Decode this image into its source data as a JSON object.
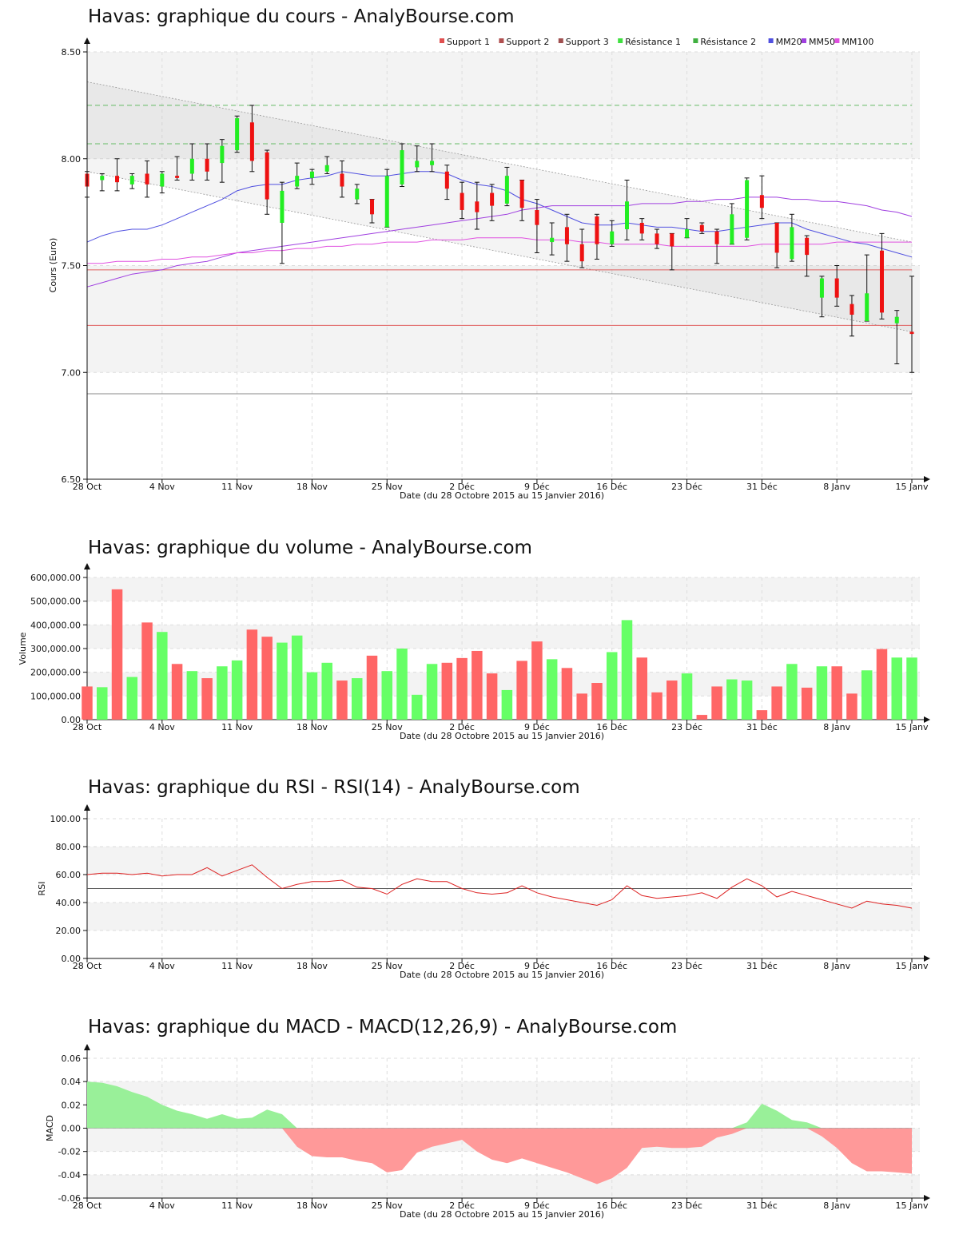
{
  "chart_data": [
    {
      "type": "candlestick",
      "title": "Havas: graphique du cours - AnalyBourse.com",
      "xlabel": "Date (du 28 Octobre 2015 au 15 Janvier 2016)",
      "ylabel": "Cours (Euro)",
      "ylim": [
        6.5,
        8.5
      ],
      "yticks": [
        "6.50",
        "7.00",
        "7.50",
        "8.00",
        "8.50"
      ],
      "date_ticks": [
        "28 Oct",
        "4 Nov",
        "11 Nov",
        "18 Nov",
        "25 Nov",
        "2 Déc",
        "9 Déc",
        "16 Déc",
        "23 Déc",
        "31 Déc",
        "8 Janv",
        "15 Janv"
      ],
      "legend_position": "top-right",
      "legend": [
        {
          "label": "Support 1",
          "color": "#e05050"
        },
        {
          "label": "Support 2",
          "color": "#b05050"
        },
        {
          "label": "Support 3",
          "color": "#a05050"
        },
        {
          "label": "Résistance 1",
          "color": "#40e040"
        },
        {
          "label": "Résistance 2",
          "color": "#40b040"
        },
        {
          "label": "MM20",
          "color": "#5050e0"
        },
        {
          "label": "MM50",
          "color": "#a040e0"
        },
        {
          "label": "MM100",
          "color": "#e050e0"
        }
      ],
      "levels": {
        "support1": 7.48,
        "support2": 7.22,
        "support3": 6.9,
        "resistance1": 8.07,
        "resistance2": 8.25
      },
      "channel": {
        "upper": [
          8.36,
          7.61
        ],
        "lower": [
          7.94,
          7.19
        ]
      },
      "candles": [
        {
          "o": 7.93,
          "h": 7.94,
          "l": 7.82,
          "c": 7.87
        },
        {
          "o": 7.9,
          "h": 7.93,
          "l": 7.85,
          "c": 7.92
        },
        {
          "o": 7.92,
          "h": 8.0,
          "l": 7.85,
          "c": 7.89
        },
        {
          "o": 7.88,
          "h": 7.93,
          "l": 7.86,
          "c": 7.92
        },
        {
          "o": 7.93,
          "h": 7.99,
          "l": 7.82,
          "c": 7.88
        },
        {
          "o": 7.87,
          "h": 7.94,
          "l": 7.84,
          "c": 7.93
        },
        {
          "o": 7.92,
          "h": 8.01,
          "l": 7.9,
          "c": 7.91
        },
        {
          "o": 7.93,
          "h": 8.07,
          "l": 7.9,
          "c": 8.0
        },
        {
          "o": 8.0,
          "h": 8.07,
          "l": 7.9,
          "c": 7.94
        },
        {
          "o": 7.98,
          "h": 8.09,
          "l": 7.89,
          "c": 8.06
        },
        {
          "o": 8.04,
          "h": 8.2,
          "l": 8.03,
          "c": 8.19
        },
        {
          "o": 8.17,
          "h": 8.25,
          "l": 7.94,
          "c": 7.99
        },
        {
          "o": 8.03,
          "h": 8.04,
          "l": 7.74,
          "c": 7.81
        },
        {
          "o": 7.7,
          "h": 7.89,
          "l": 7.51,
          "c": 7.85
        },
        {
          "o": 7.87,
          "h": 7.98,
          "l": 7.86,
          "c": 7.92
        },
        {
          "o": 7.91,
          "h": 7.95,
          "l": 7.88,
          "c": 7.94
        },
        {
          "o": 7.94,
          "h": 8.01,
          "l": 7.93,
          "c": 7.97
        },
        {
          "o": 7.93,
          "h": 7.99,
          "l": 7.82,
          "c": 7.87
        },
        {
          "o": 7.81,
          "h": 7.88,
          "l": 7.79,
          "c": 7.86
        },
        {
          "o": 7.81,
          "h": 7.81,
          "l": 7.7,
          "c": 7.74
        },
        {
          "o": 7.68,
          "h": 7.95,
          "l": 7.68,
          "c": 7.92
        },
        {
          "o": 7.88,
          "h": 8.07,
          "l": 7.87,
          "c": 8.04
        },
        {
          "o": 7.96,
          "h": 8.06,
          "l": 7.94,
          "c": 7.99
        },
        {
          "o": 7.97,
          "h": 8.07,
          "l": 7.94,
          "c": 7.99
        },
        {
          "o": 7.94,
          "h": 7.97,
          "l": 7.81,
          "c": 7.86
        },
        {
          "o": 7.84,
          "h": 7.89,
          "l": 7.72,
          "c": 7.76
        },
        {
          "o": 7.8,
          "h": 7.89,
          "l": 7.67,
          "c": 7.75
        },
        {
          "o": 7.84,
          "h": 7.88,
          "l": 7.71,
          "c": 7.78
        },
        {
          "o": 7.79,
          "h": 7.96,
          "l": 7.78,
          "c": 7.92
        },
        {
          "o": 7.9,
          "h": 7.9,
          "l": 7.71,
          "c": 7.77
        },
        {
          "o": 7.76,
          "h": 7.81,
          "l": 7.56,
          "c": 7.69
        },
        {
          "o": 7.61,
          "h": 7.7,
          "l": 7.55,
          "c": 7.63
        },
        {
          "o": 7.68,
          "h": 7.74,
          "l": 7.52,
          "c": 7.6
        },
        {
          "o": 7.6,
          "h": 7.67,
          "l": 7.49,
          "c": 7.52
        },
        {
          "o": 7.73,
          "h": 7.74,
          "l": 7.53,
          "c": 7.6
        },
        {
          "o": 7.6,
          "h": 7.71,
          "l": 7.59,
          "c": 7.66
        },
        {
          "o": 7.67,
          "h": 7.9,
          "l": 7.62,
          "c": 7.8
        },
        {
          "o": 7.7,
          "h": 7.72,
          "l": 7.62,
          "c": 7.65
        },
        {
          "o": 7.65,
          "h": 7.67,
          "l": 7.58,
          "c": 7.6
        },
        {
          "o": 7.65,
          "h": 7.65,
          "l": 7.48,
          "c": 7.59
        },
        {
          "o": 7.63,
          "h": 7.72,
          "l": 7.63,
          "c": 7.67
        },
        {
          "o": 7.69,
          "h": 7.7,
          "l": 7.65,
          "c": 7.66
        },
        {
          "o": 7.66,
          "h": 7.67,
          "l": 7.51,
          "c": 7.6
        },
        {
          "o": 7.6,
          "h": 7.79,
          "l": 7.6,
          "c": 7.74
        },
        {
          "o": 7.63,
          "h": 7.91,
          "l": 7.62,
          "c": 7.9
        },
        {
          "o": 7.83,
          "h": 7.92,
          "l": 7.72,
          "c": 7.77
        },
        {
          "o": 7.7,
          "h": 7.7,
          "l": 7.49,
          "c": 7.56
        },
        {
          "o": 7.53,
          "h": 7.74,
          "l": 7.52,
          "c": 7.68
        },
        {
          "o": 7.63,
          "h": 7.64,
          "l": 7.45,
          "c": 7.55
        },
        {
          "o": 7.35,
          "h": 7.45,
          "l": 7.26,
          "c": 7.44
        },
        {
          "o": 7.44,
          "h": 7.5,
          "l": 7.31,
          "c": 7.35
        },
        {
          "o": 7.32,
          "h": 7.36,
          "l": 7.17,
          "c": 7.27
        },
        {
          "o": 7.24,
          "h": 7.55,
          "l": 7.24,
          "c": 7.37
        },
        {
          "o": 7.57,
          "h": 7.65,
          "l": 7.25,
          "c": 7.28
        },
        {
          "o": 7.23,
          "h": 7.29,
          "l": 7.04,
          "c": 7.26
        },
        {
          "o": 7.19,
          "h": 7.45,
          "l": 7.0,
          "c": 7.18
        }
      ],
      "mm20": [
        7.61,
        7.64,
        7.66,
        7.67,
        7.67,
        7.69,
        7.72,
        7.75,
        7.78,
        7.81,
        7.85,
        7.87,
        7.88,
        7.88,
        7.9,
        7.91,
        7.92,
        7.94,
        7.93,
        7.92,
        7.92,
        7.93,
        7.94,
        7.94,
        7.93,
        7.9,
        7.88,
        7.87,
        7.85,
        7.81,
        7.79,
        7.76,
        7.73,
        7.7,
        7.69,
        7.69,
        7.7,
        7.69,
        7.68,
        7.68,
        7.67,
        7.66,
        7.66,
        7.67,
        7.68,
        7.69,
        7.7,
        7.7,
        7.67,
        7.65,
        7.63,
        7.61,
        7.6,
        7.58,
        7.56,
        7.54
      ],
      "mm50": [
        7.4,
        7.42,
        7.44,
        7.46,
        7.47,
        7.48,
        7.5,
        7.51,
        7.52,
        7.54,
        7.56,
        7.57,
        7.58,
        7.59,
        7.6,
        7.61,
        7.62,
        7.63,
        7.64,
        7.65,
        7.66,
        7.67,
        7.68,
        7.69,
        7.7,
        7.71,
        7.72,
        7.73,
        7.74,
        7.76,
        7.77,
        7.78,
        7.78,
        7.78,
        7.78,
        7.78,
        7.78,
        7.79,
        7.79,
        7.79,
        7.8,
        7.8,
        7.81,
        7.81,
        7.82,
        7.82,
        7.82,
        7.81,
        7.81,
        7.8,
        7.8,
        7.79,
        7.78,
        7.76,
        7.75,
        7.73
      ],
      "mm100": [
        7.51,
        7.51,
        7.52,
        7.52,
        7.52,
        7.53,
        7.53,
        7.54,
        7.54,
        7.55,
        7.56,
        7.56,
        7.57,
        7.57,
        7.58,
        7.58,
        7.59,
        7.59,
        7.6,
        7.6,
        7.61,
        7.61,
        7.61,
        7.62,
        7.62,
        7.62,
        7.63,
        7.63,
        7.63,
        7.63,
        7.62,
        7.62,
        7.62,
        7.61,
        7.61,
        7.6,
        7.6,
        7.6,
        7.6,
        7.59,
        7.59,
        7.59,
        7.59,
        7.59,
        7.59,
        7.6,
        7.6,
        7.6,
        7.6,
        7.6,
        7.61,
        7.61,
        7.61,
        7.61,
        7.61,
        7.61
      ]
    },
    {
      "type": "bar",
      "title": "Havas: graphique du volume - AnalyBourse.com",
      "xlabel": "Date (du 28 Octobre 2015 au 15 Janvier 2016)",
      "ylabel": "Volume",
      "ylim": [
        0,
        600000
      ],
      "yticks": [
        "0.00",
        "100,000.00",
        "200,000.00",
        "300,000.00",
        "400,000.00",
        "500,000.00",
        "600,000.00"
      ],
      "date_ticks": [
        "28 Oct",
        "4 Nov",
        "11 Nov",
        "18 Nov",
        "25 Nov",
        "2 Déc",
        "9 Déc",
        "16 Déc",
        "23 Déc",
        "31 Déc",
        "8 Janv",
        "15 Janv"
      ],
      "values": [
        140000,
        137000,
        550000,
        180000,
        410000,
        370000,
        235000,
        205000,
        175000,
        225000,
        250000,
        380000,
        350000,
        325000,
        355000,
        200000,
        240000,
        165000,
        175000,
        270000,
        205000,
        300000,
        105000,
        235000,
        240000,
        260000,
        290000,
        195000,
        125000,
        248000,
        330000,
        255000,
        218000,
        110000,
        155000,
        285000,
        420000,
        262000,
        115000,
        165000,
        195000,
        20000,
        140000,
        170000,
        165000,
        40000,
        140000,
        235000,
        135000,
        225000,
        225000,
        110000,
        208000,
        298000,
        262000,
        262000
      ],
      "colors": [
        "r",
        "g",
        "r",
        "g",
        "r",
        "g",
        "r",
        "g",
        "r",
        "g",
        "g",
        "r",
        "r",
        "g",
        "g",
        "g",
        "g",
        "r",
        "g",
        "r",
        "g",
        "g",
        "g",
        "g",
        "r",
        "r",
        "r",
        "r",
        "g",
        "r",
        "r",
        "g",
        "r",
        "r",
        "r",
        "g",
        "g",
        "r",
        "r",
        "r",
        "g",
        "r",
        "r",
        "g",
        "g",
        "r",
        "r",
        "g",
        "r",
        "g",
        "r",
        "r",
        "g",
        "r",
        "g",
        "g"
      ]
    },
    {
      "type": "line",
      "title": "Havas: graphique du RSI - RSI(14) - AnalyBourse.com",
      "xlabel": "Date (du 28 Octobre 2015 au 15 Janvier 2016)",
      "ylabel": "RSI",
      "ylim": [
        0,
        100
      ],
      "yticks": [
        "0.00",
        "20.00",
        "40.00",
        "60.00",
        "80.00",
        "100.00"
      ],
      "reference": 50,
      "date_ticks": [
        "28 Oct",
        "4 Nov",
        "11 Nov",
        "18 Nov",
        "25 Nov",
        "2 Déc",
        "9 Déc",
        "16 Déc",
        "23 Déc",
        "31 Déc",
        "8 Janv",
        "15 Janv"
      ],
      "values": [
        60,
        61,
        61,
        60,
        61,
        59,
        60,
        60,
        65,
        59,
        63,
        67,
        58,
        50,
        53,
        55,
        55,
        56,
        51,
        50,
        46,
        53,
        57,
        55,
        55,
        50,
        47,
        46,
        47,
        52,
        47,
        44,
        42,
        40,
        38,
        42,
        52,
        45,
        43,
        44,
        45,
        47,
        43,
        51,
        57,
        52,
        44,
        48,
        45,
        42,
        39,
        36,
        41,
        39,
        38,
        36
      ]
    },
    {
      "type": "area",
      "title": "Havas: graphique du MACD - MACD(12,26,9) - AnalyBourse.com",
      "xlabel": "Date (du 28 Octobre 2015 au 15 Janvier 2016)",
      "ylabel": "MACD",
      "ylim": [
        -0.06,
        0.06
      ],
      "yticks": [
        "-0.06",
        "-0.04",
        "-0.02",
        "0.00",
        "0.02",
        "0.04",
        "0.06"
      ],
      "date_ticks": [
        "28 Oct",
        "4 Nov",
        "11 Nov",
        "18 Nov",
        "25 Nov",
        "2 Déc",
        "9 Déc",
        "16 Déc",
        "23 Déc",
        "31 Déc",
        "8 Janv",
        "15 Janv"
      ],
      "values": [
        0.04,
        0.039,
        0.036,
        0.031,
        0.027,
        0.02,
        0.015,
        0.012,
        0.008,
        0.012,
        0.008,
        0.009,
        0.016,
        0.012,
        -0.016,
        -0.024,
        -0.025,
        -0.025,
        -0.028,
        -0.03,
        -0.038,
        -0.036,
        -0.021,
        -0.016,
        -0.013,
        -0.01,
        -0.02,
        -0.027,
        -0.03,
        -0.026,
        -0.03,
        -0.034,
        -0.038,
        -0.043,
        -0.048,
        -0.043,
        -0.034,
        -0.017,
        -0.016,
        -0.017,
        -0.017,
        -0.016,
        -0.008,
        -0.005,
        0.005,
        0.021,
        0.015,
        0.007,
        0.005,
        -0.007,
        -0.017,
        -0.03,
        -0.037,
        -0.037,
        -0.038,
        -0.039
      ]
    }
  ]
}
